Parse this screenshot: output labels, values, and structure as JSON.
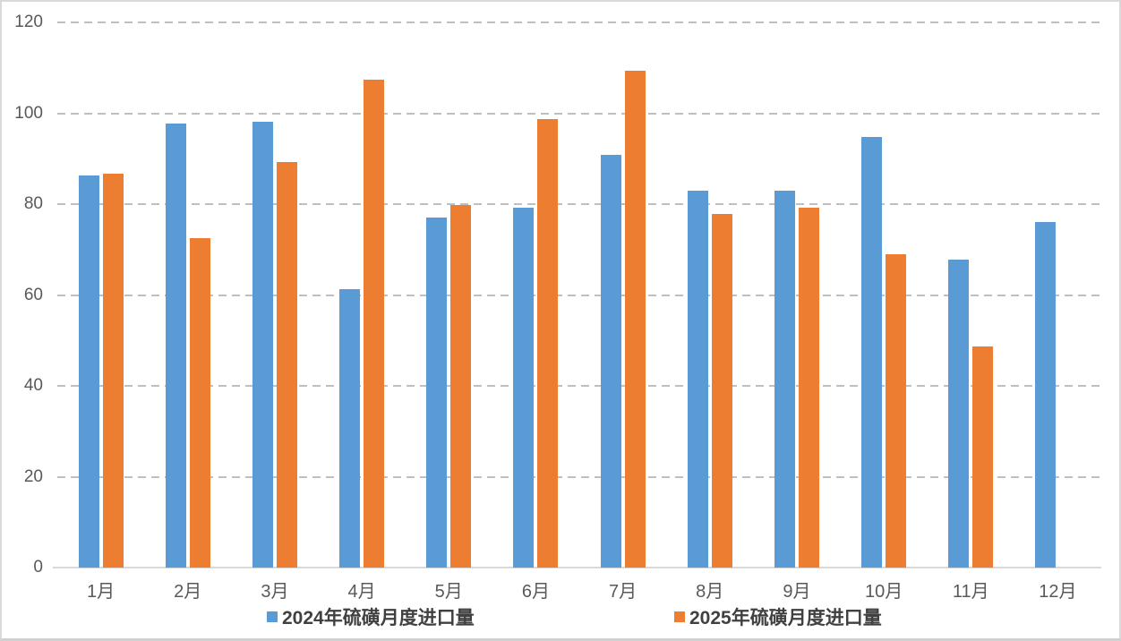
{
  "chart_data": {
    "type": "bar",
    "title": "",
    "xlabel": "",
    "ylabel": "",
    "categories": [
      "1月",
      "2月",
      "3月",
      "4月",
      "5月",
      "6月",
      "7月",
      "8月",
      "9月",
      "10月",
      "11月",
      "12月"
    ],
    "series": [
      {
        "name": "2024年硫磺月度进口量",
        "color": "#5B9BD5",
        "values": [
          86.4,
          97.7,
          98.2,
          61.3,
          77.0,
          79.2,
          90.9,
          82.9,
          82.9,
          94.7,
          67.8,
          76.1
        ]
      },
      {
        "name": "2025年硫磺月度进口量",
        "color": "#ED7D31",
        "values": [
          86.7,
          72.5,
          89.2,
          107.4,
          79.8,
          98.8,
          109.4,
          77.9,
          79.2,
          68.9,
          48.7,
          null
        ]
      }
    ],
    "ylim": [
      0,
      120
    ],
    "yticks": [
      0,
      20,
      40,
      60,
      80,
      100,
      120
    ],
    "grid": "horizontal-dashed",
    "legend_position": "bottom"
  },
  "colors": {
    "grid": "#BFBFBF",
    "axis_line": "#D9D9D9",
    "tick_text": "#595959",
    "legend_text": "#404040",
    "frame_border": "#D9D9D9"
  }
}
